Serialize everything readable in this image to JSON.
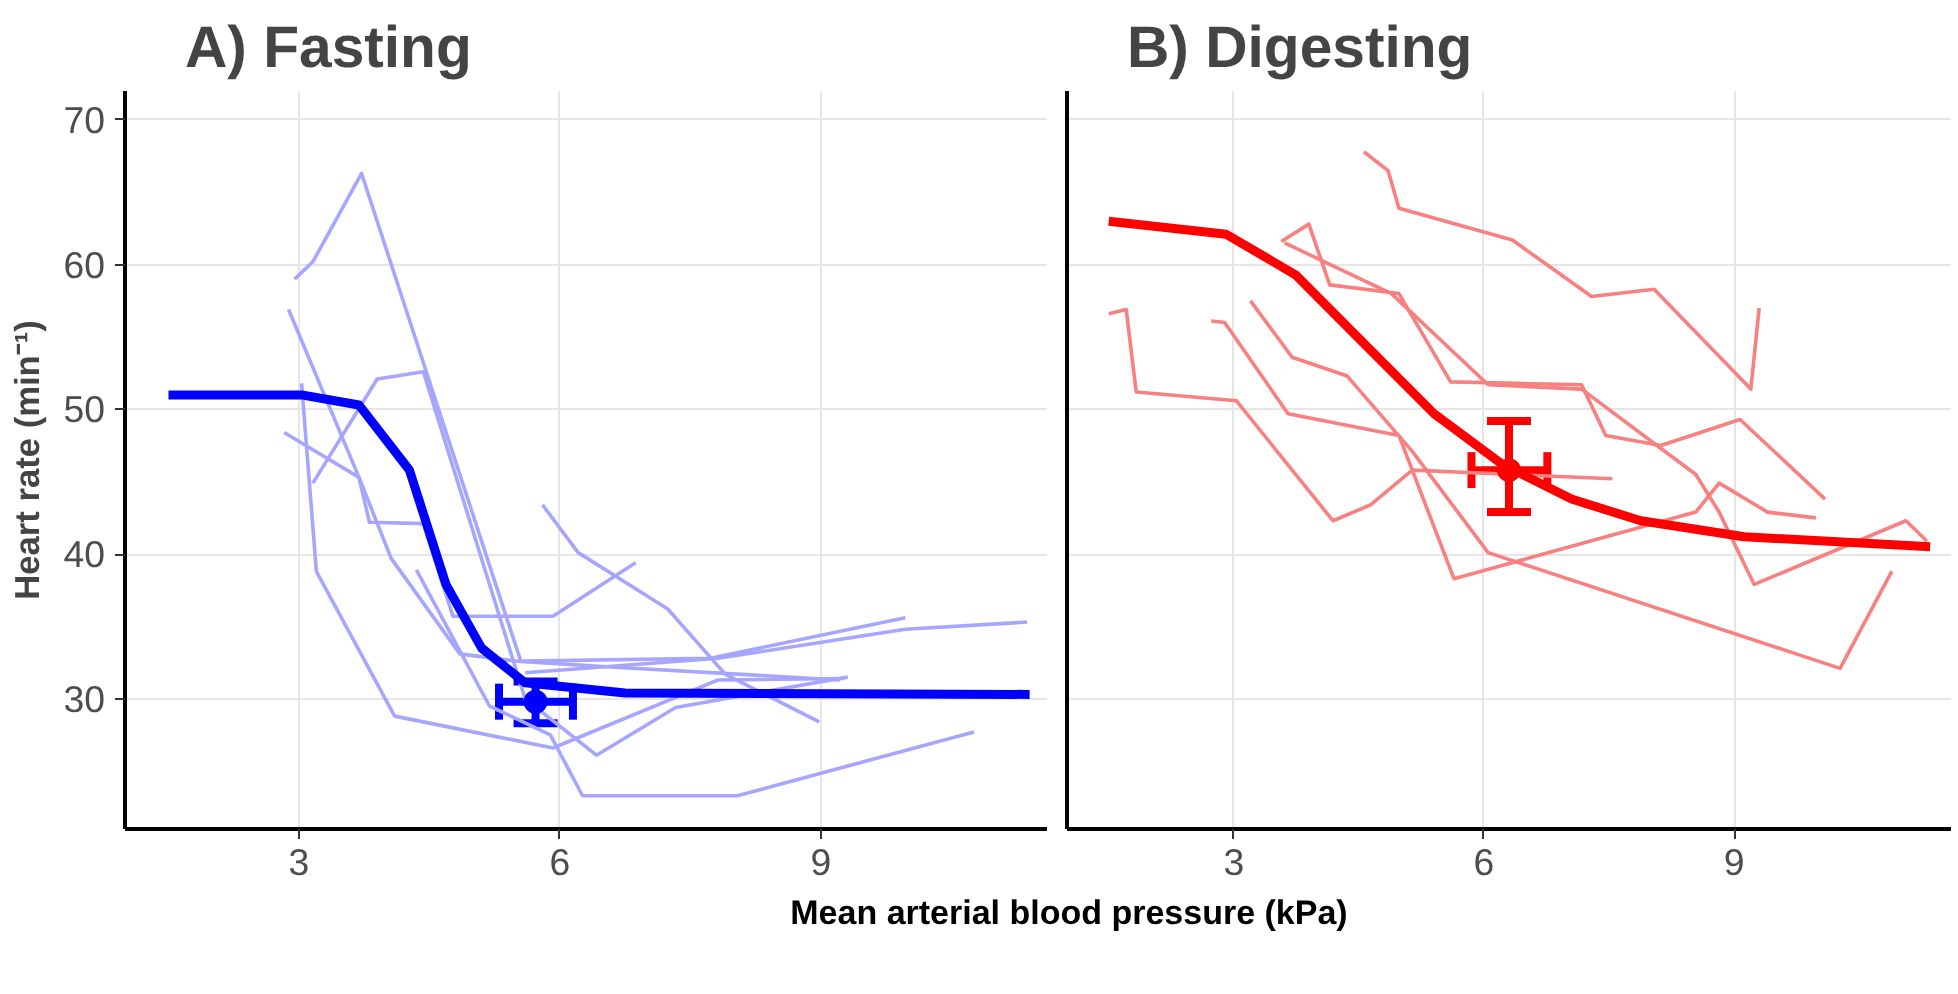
{
  "chart_data": [
    {
      "type": "line",
      "title": "A) Fasting",
      "xlabel": "Mean arterial blood pressure (kPa)",
      "ylabel": "Heart rate (min⁻¹)",
      "xlim": [
        1.0,
        11.6
      ],
      "ylim": [
        21,
        72
      ],
      "xticks": [
        3,
        6,
        9
      ],
      "yticks": [
        30,
        40,
        50,
        60,
        70
      ],
      "grid": true,
      "line_style": "solid",
      "series": [
        {
          "color": "#a6a6ff",
          "x": [
            2.95,
            3.16,
            3.72,
            5.55,
            7.73,
            9.97
          ],
          "values": [
            59.0,
            60.2,
            66.3,
            32.6,
            32.8,
            35.6
          ]
        },
        {
          "color": "#a6a6ff",
          "x": [
            2.88,
            3.69,
            3.81,
            4.43,
            4.77,
            5.92,
            6.87
          ],
          "values": [
            56.9,
            45.3,
            42.2,
            42.1,
            35.7,
            35.7,
            39.4
          ]
        },
        {
          "color": "#a6a6ff",
          "x": [
            3.16,
            3.9,
            4.43,
            5.6,
            6.42,
            7.33,
            9.31
          ],
          "values": [
            44.9,
            52.1,
            52.6,
            30.0,
            26.1,
            29.4,
            31.5
          ]
        },
        {
          "color": "#a6a6ff",
          "x": [
            3.03,
            3.2,
            4.1,
            5.92,
            7.82,
            9.27
          ],
          "values": [
            51.8,
            38.8,
            28.8,
            26.6,
            31.3,
            31.4
          ]
        },
        {
          "color": "#a6a6ff",
          "x": [
            5.8,
            6.21,
            7.24,
            7.9,
            8.98
          ],
          "values": [
            43.4,
            40.1,
            36.2,
            31.7,
            28.4
          ]
        },
        {
          "color": "#a6a6ff",
          "x": [
            4.35,
            5.19,
            5.89,
            6.26,
            8.04,
            10.76
          ],
          "values": [
            38.9,
            29.5,
            27.5,
            23.3,
            23.3,
            27.7
          ]
        },
        {
          "color": "#a6a6ff",
          "x": [
            2.83,
            3.69,
            4.06,
            4.85,
            5.5,
            6.58,
            9.22
          ],
          "values": [
            48.4,
            45.3,
            39.7,
            33.1,
            32.6,
            32.2,
            31.3
          ]
        },
        {
          "color": "#a6a6ff",
          "x": [
            5.6,
            7.82,
            9.97,
            11.37
          ],
          "values": [
            31.8,
            32.8,
            34.8,
            35.3
          ]
        },
        {
          "color": "#0000ff",
          "x": [
            1.5,
            3.03,
            3.69,
            4.27,
            4.69,
            5.1,
            5.6,
            6.75,
            11.4
          ],
          "values": [
            51.0,
            51.0,
            50.3,
            45.8,
            37.9,
            33.5,
            31.1,
            30.4,
            30.3
          ]
        },
        {
          "type": "scatter",
          "marker": "circle",
          "color": "#0000ff",
          "x": [
            5.72
          ],
          "values": [
            29.8
          ],
          "errors": [
            [
              28.3,
              31.2
            ]
          ],
          "xerrors": [
            [
              5.3,
              6.15
            ]
          ]
        }
      ]
    },
    {
      "type": "line",
      "title": "B) Digesting",
      "xlim": [
        1.0,
        11.6
      ],
      "ylim": [
        21,
        72
      ],
      "xticks": [
        3,
        6,
        9
      ],
      "yticks": [
        30,
        40,
        50,
        60,
        70
      ],
      "grid": true,
      "tick_labels": "x",
      "line_style": "solid",
      "series": [
        {
          "color": "#f88080",
          "x": [
            4.56,
            4.85,
            4.98,
            6.34,
            7.29,
            8.04,
            9.2,
            9.3
          ],
          "values": [
            67.8,
            66.5,
            63.9,
            61.7,
            57.8,
            58.3,
            51.4,
            57.0
          ]
        },
        {
          "color": "#f88080",
          "x": [
            1.5,
            1.71,
            1.83,
            3.03,
            4.19,
            4.64,
            5.14,
            7.54
          ],
          "values": [
            56.6,
            56.9,
            51.2,
            50.6,
            42.3,
            43.4,
            45.8,
            45.2
          ]
        },
        {
          "color": "#f88080",
          "x": [
            2.73,
            2.89,
            3.65,
            4.98,
            5.64,
            8.54,
            8.82,
            9.4,
            9.98
          ],
          "values": [
            56.1,
            56.0,
            49.7,
            48.2,
            38.3,
            42.9,
            44.9,
            42.9,
            42.5
          ]
        },
        {
          "color": "#f88080",
          "x": [
            3.2,
            3.7,
            4.36,
            5.14,
            6.05,
            10.27,
            10.89
          ],
          "values": [
            57.5,
            53.6,
            52.3,
            47.1,
            40.1,
            32.1,
            38.8
          ]
        },
        {
          "color": "#f88080",
          "x": [
            3.57,
            3.9,
            4.15,
            4.98,
            5.6,
            7.17,
            7.46,
            8.12,
            9.07,
            10.09
          ],
          "values": [
            61.6,
            62.8,
            58.6,
            58.0,
            51.9,
            51.7,
            48.2,
            47.5,
            49.3,
            43.8
          ]
        },
        {
          "color": "#f88080",
          "x": [
            3.61,
            4.89,
            6.05,
            7.17,
            8.54,
            8.82,
            9.24,
            11.06,
            11.31
          ],
          "values": [
            61.5,
            58.0,
            51.7,
            51.4,
            45.5,
            42.9,
            37.9,
            42.3,
            40.9
          ]
        },
        {
          "color": "#ff0000",
          "x": [
            1.5,
            2.91,
            3.74,
            4.57,
            5.4,
            6.22,
            7.05,
            7.88,
            9.12,
            11.35
          ],
          "values": [
            63.0,
            62.1,
            59.3,
            54.5,
            49.7,
            46.2,
            43.8,
            42.3,
            41.2,
            40.5
          ]
        },
        {
          "type": "scatter",
          "marker": "circle",
          "color": "#ff0000",
          "x": [
            6.3
          ],
          "values": [
            45.8
          ],
          "errors": [
            [
              42.9,
              49.2
            ]
          ],
          "xerrors": [
            [
              5.85,
              6.76
            ]
          ]
        }
      ]
    }
  ]
}
